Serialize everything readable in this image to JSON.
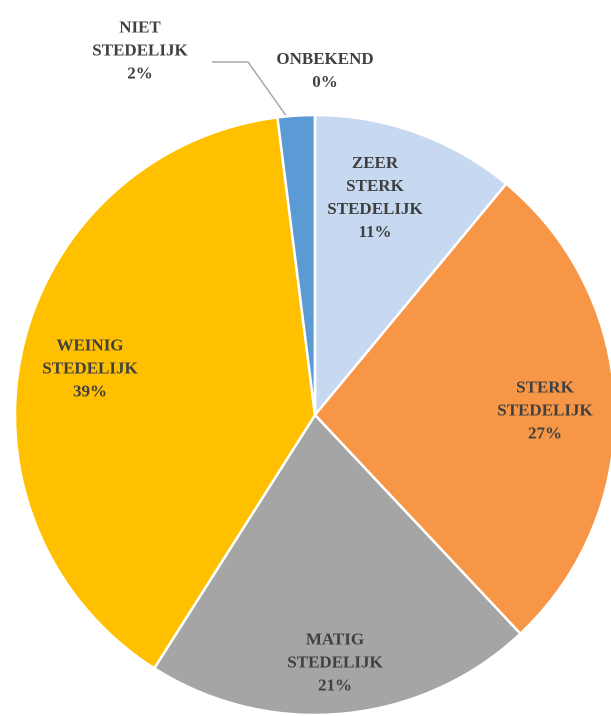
{
  "chart_data": {
    "type": "pie",
    "categories": [
      "ZEER STERK STEDELIJK",
      "STERK STEDELIJK",
      "MATIG STEDELIJK",
      "WEINIG STEDELIJK",
      "NIET STEDELIJK",
      "ONBEKEND"
    ],
    "values": [
      11,
      27,
      21,
      39,
      2,
      0
    ],
    "value_labels": [
      "11%",
      "27%",
      "21%",
      "39%",
      "2%",
      "0%"
    ],
    "colors": [
      "#c6d9f1",
      "#f79646",
      "#a5a5a5",
      "#ffc000",
      "#5b9bd5",
      "#70ad47"
    ]
  }
}
